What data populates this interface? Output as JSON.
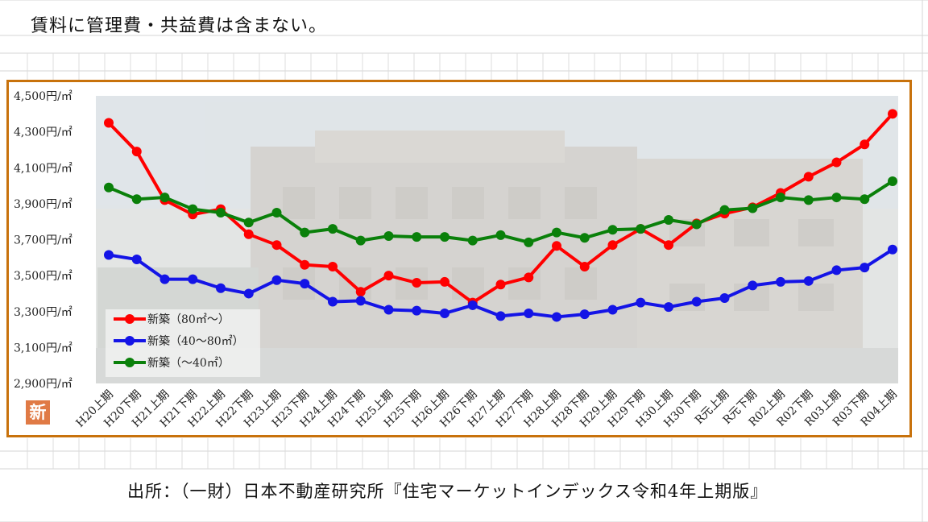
{
  "header_note": "賃料に管理費・共益費は含まない。",
  "source_note": "出所：（一財）日本不動産研究所『住宅マーケットインデックス令和4年上期版』",
  "logo_text": "新",
  "colors": {
    "frame": "#c8720c",
    "plot_bg": "#e3e5e4"
  },
  "chart_data": {
    "type": "line",
    "y_tick_labels": [
      "4,500円/㎡",
      "4,300円/㎡",
      "4,100円/㎡",
      "3,900円/㎡",
      "3,700円/㎡",
      "3,500円/㎡",
      "3,300円/㎡",
      "3,100円/㎡",
      "2,900円/㎡"
    ],
    "y_ticks": [
      4500,
      4300,
      4100,
      3900,
      3700,
      3500,
      3300,
      3100,
      2900
    ],
    "ylim": [
      2900,
      4500
    ],
    "categories": [
      "H20上期",
      "H20下期",
      "H21上期",
      "H21下期",
      "H22上期",
      "H22下期",
      "H23上期",
      "H23下期",
      "H24上期",
      "H24下期",
      "H25上期",
      "H25下期",
      "H26上期",
      "H26下期",
      "H27上期",
      "H27下期",
      "H28上期",
      "H28下期",
      "H29上期",
      "H29下期",
      "H30上期",
      "H30下期",
      "R元上期",
      "R元下期",
      "R02上期",
      "R02下期",
      "R03上期",
      "R03下期",
      "R04上期"
    ],
    "legend_position": "bottom-left",
    "series": [
      {
        "name": "新築（80㎡～）",
        "color": "#ff0000",
        "values": [
          4350,
          4190,
          3920,
          3840,
          3870,
          3730,
          3670,
          3560,
          3550,
          3410,
          3500,
          3460,
          3465,
          3350,
          3450,
          3490,
          3665,
          3550,
          3670,
          3760,
          3670,
          3790,
          3845,
          3880,
          3960,
          4050,
          4130,
          4230,
          4400
        ]
      },
      {
        "name": "新築（40～80㎡）",
        "color": "#1414e6",
        "values": [
          3615,
          3590,
          3480,
          3480,
          3430,
          3400,
          3475,
          3455,
          3355,
          3360,
          3310,
          3305,
          3290,
          3335,
          3275,
          3290,
          3270,
          3285,
          3310,
          3350,
          3325,
          3355,
          3375,
          3445,
          3465,
          3470,
          3530,
          3545,
          3645
        ]
      },
      {
        "name": "新築（～40㎡）",
        "color": "#0a800a",
        "values": [
          3990,
          3925,
          3935,
          3870,
          3850,
          3795,
          3850,
          3740,
          3760,
          3695,
          3720,
          3715,
          3715,
          3695,
          3725,
          3685,
          3740,
          3710,
          3755,
          3760,
          3810,
          3785,
          3865,
          3875,
          3935,
          3920,
          3935,
          3925,
          4025
        ]
      }
    ]
  }
}
